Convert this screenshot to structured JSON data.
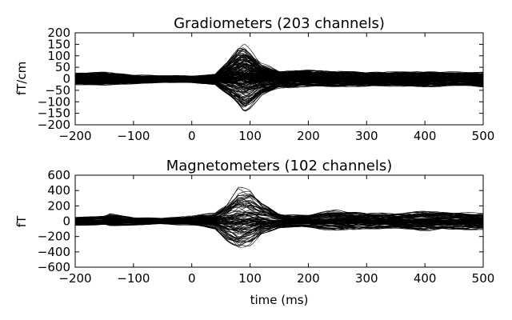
{
  "chart_data": [
    {
      "type": "line",
      "title": "Gradiometers (203 channels)",
      "xlabel": "",
      "ylabel": "fT/cm",
      "xlim": [
        -200,
        500
      ],
      "ylim": [
        -200,
        200
      ],
      "xticks": [
        "−200",
        "−100",
        "0",
        "100",
        "200",
        "300",
        "400",
        "500"
      ],
      "xtick_values": [
        -200,
        -100,
        0,
        100,
        200,
        300,
        400,
        500
      ],
      "yticks": [
        "200",
        "150",
        "100",
        "50",
        "0",
        "−50",
        "−100",
        "−150",
        "−200"
      ],
      "ytick_values": [
        200,
        150,
        100,
        50,
        0,
        -50,
        -100,
        -150,
        -200
      ],
      "channel_count": 203,
      "grid": false,
      "line_color": "#000000",
      "series_envelope": {
        "x": [
          -200,
          -150,
          -100,
          -50,
          0,
          40,
          60,
          80,
          90,
          100,
          120,
          150,
          200,
          250,
          300,
          350,
          400,
          450,
          500
        ],
        "max": [
          30,
          35,
          20,
          18,
          15,
          25,
          90,
          175,
          185,
          150,
          80,
          40,
          45,
          40,
          35,
          35,
          40,
          35,
          35
        ],
        "min": [
          -30,
          -30,
          -25,
          -20,
          -20,
          -30,
          -80,
          -130,
          -160,
          -140,
          -80,
          -45,
          -40,
          -40,
          -40,
          -35,
          -40,
          -35,
          -40
        ]
      }
    },
    {
      "type": "line",
      "title": "Magnetometers (102 channels)",
      "xlabel": "time (ms)",
      "ylabel": "fT",
      "xlim": [
        -200,
        500
      ],
      "ylim": [
        -600,
        600
      ],
      "xticks": [
        "−200",
        "−100",
        "0",
        "100",
        "200",
        "300",
        "400",
        "500"
      ],
      "xtick_values": [
        -200,
        -100,
        0,
        100,
        200,
        300,
        400,
        500
      ],
      "yticks": [
        "600",
        "400",
        "200",
        "0",
        "−200",
        "−400",
        "−600"
      ],
      "ytick_values": [
        600,
        400,
        200,
        0,
        -200,
        -400,
        -600
      ],
      "channel_count": 102,
      "grid": false,
      "line_color": "#000000",
      "series_envelope": {
        "x": [
          -200,
          -150,
          -140,
          -100,
          -50,
          0,
          40,
          60,
          80,
          100,
          120,
          150,
          200,
          250,
          300,
          350,
          400,
          450,
          500
        ],
        "max": [
          60,
          80,
          120,
          60,
          50,
          80,
          120,
          280,
          520,
          480,
          280,
          120,
          100,
          180,
          120,
          120,
          160,
          140,
          120
        ],
        "min": [
          -60,
          -60,
          -80,
          -60,
          -50,
          -60,
          -120,
          -300,
          -440,
          -380,
          -200,
          -100,
          -100,
          -150,
          -120,
          -110,
          -140,
          -130,
          -130
        ]
      }
    }
  ]
}
